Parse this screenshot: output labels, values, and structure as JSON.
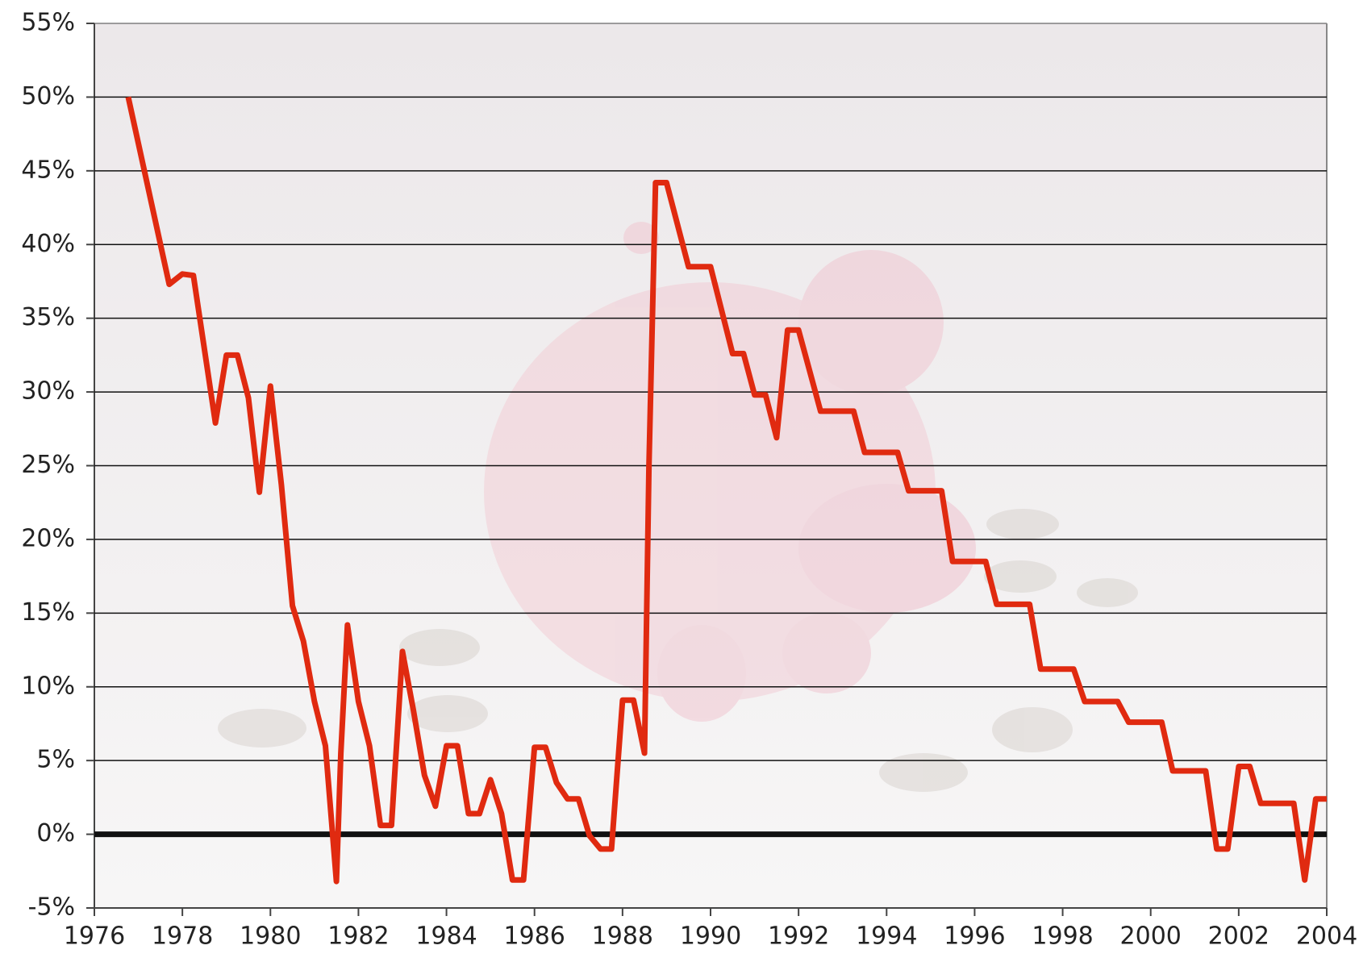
{
  "chart_data": {
    "type": "line",
    "x": [
      1976.77,
      1977.7,
      1978.0,
      1978.25,
      1978.75,
      1979.0,
      1979.25,
      1979.5,
      1979.75,
      1980.0,
      1980.25,
      1980.5,
      1980.75,
      1981.0,
      1981.25,
      1981.5,
      1981.6,
      1981.75,
      1982.0,
      1982.25,
      1982.5,
      1982.75,
      1983.0,
      1983.25,
      1983.5,
      1983.75,
      1984.0,
      1984.25,
      1984.5,
      1984.75,
      1985.0,
      1985.25,
      1985.5,
      1985.75,
      1986.0,
      1986.25,
      1986.5,
      1986.75,
      1987.0,
      1987.25,
      1987.5,
      1987.75,
      1988.0,
      1988.25,
      1988.5,
      1988.6,
      1988.75,
      1989.0,
      1989.5,
      1990.0,
      1990.5,
      1990.75,
      1991.0,
      1991.25,
      1991.5,
      1991.75,
      1992.0,
      1992.5,
      1993.25,
      1993.5,
      1994.25,
      1994.5,
      1995.25,
      1995.5,
      1996.25,
      1996.5,
      1997.25,
      1997.5,
      1998.25,
      1998.5,
      1999.25,
      1999.5,
      2000.25,
      2000.5,
      2001.25,
      2001.5,
      2001.75,
      2002.0,
      2002.25,
      2002.5,
      2003.25,
      2003.5,
      2003.75,
      2004.0
    ],
    "series": [
      {
        "color": "#e02a10",
        "values": [
          50,
          37.3,
          38,
          37.9,
          27.9,
          32.5,
          32.5,
          29.6,
          23.2,
          30.4,
          23.7,
          15.5,
          13.1,
          9,
          6,
          -3.2,
          5.5,
          14.2,
          9,
          6,
          0.6,
          0.6,
          12.4,
          8.4,
          4,
          1.9,
          6,
          6,
          1.4,
          1.4,
          3.7,
          1.4,
          -3.1,
          -3.1,
          5.9,
          5.9,
          3.5,
          2.4,
          2.4,
          -0.1,
          -1,
          -1,
          9.1,
          9.1,
          5.5,
          24.9,
          44.2,
          44.2,
          38.5,
          38.5,
          32.6,
          32.6,
          29.8,
          29.8,
          26.9,
          34.2,
          34.2,
          28.7,
          28.7,
          25.9,
          25.9,
          23.3,
          23.3,
          18.5,
          18.5,
          15.6,
          15.6,
          11.2,
          11.2,
          9,
          9,
          7.6,
          7.6,
          4.3,
          4.3,
          -1,
          -1,
          4.6,
          4.6,
          2.1,
          2.1,
          -3.1,
          2.4,
          2.4
        ]
      }
    ],
    "xlim": [
      1976,
      2004
    ],
    "xticks": [
      1976,
      1978,
      1980,
      1982,
      1984,
      1986,
      1988,
      1990,
      1992,
      1994,
      1996,
      1998,
      2000,
      2002,
      2004
    ],
    "ylim": [
      -5,
      55
    ],
    "yticks": [
      {
        "value": -5,
        "label": "-5%"
      },
      {
        "value": 0,
        "label": "0%"
      },
      {
        "value": 5,
        "label": "5%"
      },
      {
        "value": 10,
        "label": "10%"
      },
      {
        "value": 15,
        "label": "15%"
      },
      {
        "value": 20,
        "label": "20%"
      },
      {
        "value": 25,
        "label": "25%"
      },
      {
        "value": 30,
        "label": "30%"
      },
      {
        "value": 35,
        "label": "35%"
      },
      {
        "value": 40,
        "label": "40%"
      },
      {
        "value": 45,
        "label": "45%"
      },
      {
        "value": 50,
        "label": "50%"
      },
      {
        "value": 55,
        "label": "55%"
      }
    ],
    "grid": true
  }
}
